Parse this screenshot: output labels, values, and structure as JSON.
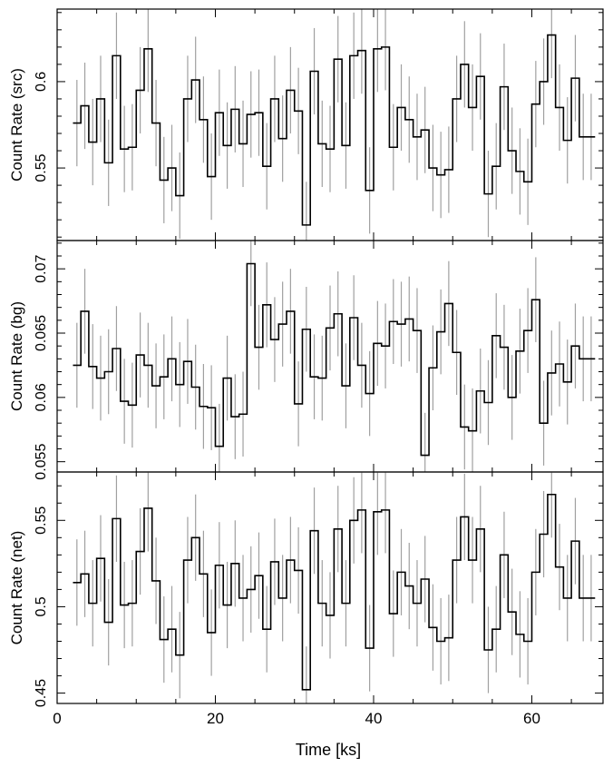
{
  "chart_data": {
    "type": "line",
    "xlabel": "Time [ks]",
    "xlim": [
      0,
      69
    ],
    "x_ticks": [
      "0",
      "20",
      "40",
      "60"
    ],
    "x_tick_values": [
      0,
      20,
      40,
      60
    ],
    "colors": {
      "line": "#000000",
      "errorbar": "#a0a0a0"
    },
    "bin_width": 1,
    "x": [
      2.5,
      3.5,
      4.5,
      5.5,
      6.5,
      7.5,
      8.5,
      9.5,
      10.5,
      11.5,
      12.5,
      13.5,
      14.5,
      15.5,
      16.5,
      17.5,
      18.5,
      19.5,
      20.5,
      21.5,
      22.5,
      23.5,
      24.5,
      25.5,
      26.5,
      27.5,
      28.5,
      29.5,
      30.5,
      31.5,
      32.5,
      33.5,
      34.5,
      35.5,
      36.5,
      37.5,
      38.5,
      39.5,
      40.5,
      41.5,
      42.5,
      43.5,
      44.5,
      45.5,
      46.5,
      47.5,
      48.5,
      49.5,
      50.5,
      51.5,
      52.5,
      53.5,
      54.5,
      55.5,
      56.5,
      57.5,
      58.5,
      59.5,
      60.5,
      61.5,
      62.5,
      63.5,
      64.5,
      65.5,
      66.5,
      67.5
    ],
    "panels": [
      {
        "ylabel": "Count Rate (src)",
        "ylim": [
          0.508,
          0.642
        ],
        "y_ticks": [
          "0.55",
          "0.6"
        ],
        "y_tick_values": [
          0.55,
          0.6
        ],
        "values": [
          0.576,
          0.586,
          0.565,
          0.59,
          0.553,
          0.615,
          0.561,
          0.562,
          0.595,
          0.619,
          0.576,
          0.543,
          0.55,
          0.534,
          0.59,
          0.601,
          0.578,
          0.545,
          0.582,
          0.563,
          0.584,
          0.564,
          0.581,
          0.582,
          0.551,
          0.59,
          0.567,
          0.595,
          0.583,
          0.517,
          0.606,
          0.564,
          0.561,
          0.613,
          0.563,
          0.615,
          0.618,
          0.537,
          0.619,
          0.62,
          0.562,
          0.585,
          0.578,
          0.568,
          0.572,
          0.55,
          0.546,
          0.549,
          0.59,
          0.61,
          0.585,
          0.603,
          0.535,
          0.551,
          0.597,
          0.56,
          0.548,
          0.542,
          0.587,
          0.6,
          0.627,
          0.585,
          0.566,
          0.602,
          0.568,
          0.568
        ],
        "errors": [
          0.025,
          0.025,
          0.025,
          0.025,
          0.025,
          0.025,
          0.025,
          0.025,
          0.025,
          0.025,
          0.025,
          0.025,
          0.025,
          0.025,
          0.025,
          0.025,
          0.025,
          0.025,
          0.025,
          0.025,
          0.025,
          0.025,
          0.025,
          0.025,
          0.025,
          0.025,
          0.025,
          0.025,
          0.025,
          0.025,
          0.025,
          0.025,
          0.025,
          0.025,
          0.025,
          0.025,
          0.025,
          0.025,
          0.025,
          0.025,
          0.025,
          0.025,
          0.025,
          0.025,
          0.025,
          0.025,
          0.025,
          0.025,
          0.025,
          0.025,
          0.025,
          0.025,
          0.025,
          0.025,
          0.025,
          0.025,
          0.025,
          0.025,
          0.025,
          0.025,
          0.025,
          0.025,
          0.025,
          0.025,
          0.025,
          0.025
        ]
      },
      {
        "ylabel": "Count Rate (bg)",
        "ylim": [
          0.0542,
          0.0722
        ],
        "y_ticks": [
          "0.055",
          "0.06",
          "0.065",
          "0.07"
        ],
        "y_tick_values": [
          0.055,
          0.06,
          0.065,
          0.07
        ],
        "values": [
          0.0625,
          0.0667,
          0.0624,
          0.0615,
          0.062,
          0.0638,
          0.0597,
          0.0594,
          0.0633,
          0.0625,
          0.0609,
          0.0616,
          0.063,
          0.061,
          0.0628,
          0.0608,
          0.0593,
          0.0592,
          0.0562,
          0.0615,
          0.0585,
          0.0587,
          0.0704,
          0.0639,
          0.0672,
          0.0645,
          0.0657,
          0.0667,
          0.0595,
          0.0653,
          0.0616,
          0.0615,
          0.0654,
          0.0665,
          0.0609,
          0.0662,
          0.0625,
          0.0603,
          0.0642,
          0.064,
          0.0659,
          0.0657,
          0.0661,
          0.0652,
          0.0555,
          0.0623,
          0.0651,
          0.0673,
          0.0635,
          0.0577,
          0.0574,
          0.0605,
          0.0596,
          0.0648,
          0.0639,
          0.06,
          0.0636,
          0.0652,
          0.0676,
          0.058,
          0.0619,
          0.0626,
          0.0612,
          0.064,
          0.063,
          0.063
        ],
        "errors": [
          0.0033,
          0.0033,
          0.0033,
          0.0033,
          0.0033,
          0.0033,
          0.0033,
          0.0033,
          0.0033,
          0.0033,
          0.0033,
          0.0033,
          0.0033,
          0.0033,
          0.0033,
          0.0033,
          0.0033,
          0.0033,
          0.0033,
          0.0033,
          0.0033,
          0.0033,
          0.0033,
          0.0033,
          0.0033,
          0.0033,
          0.0033,
          0.0033,
          0.0033,
          0.0033,
          0.0033,
          0.0033,
          0.0033,
          0.0033,
          0.0033,
          0.0033,
          0.0033,
          0.0033,
          0.0033,
          0.0033,
          0.0033,
          0.0033,
          0.0033,
          0.0033,
          0.0033,
          0.0033,
          0.0033,
          0.0033,
          0.0033,
          0.0033,
          0.0033,
          0.0033,
          0.0033,
          0.0033,
          0.0033,
          0.0033,
          0.0033,
          0.0033,
          0.0033,
          0.0033,
          0.0033,
          0.0033,
          0.0033,
          0.0033,
          0.0033,
          0.0033
        ]
      },
      {
        "ylabel": "Count Rate (net)",
        "ylim": [
          0.444,
          0.578
        ],
        "y_ticks": [
          "0.45",
          "0.5",
          "0.55"
        ],
        "y_tick_values": [
          0.45,
          0.5,
          0.55
        ],
        "values": [
          0.514,
          0.519,
          0.502,
          0.528,
          0.491,
          0.551,
          0.501,
          0.502,
          0.532,
          0.557,
          0.515,
          0.481,
          0.487,
          0.472,
          0.527,
          0.54,
          0.519,
          0.485,
          0.524,
          0.501,
          0.525,
          0.505,
          0.51,
          0.518,
          0.487,
          0.526,
          0.505,
          0.527,
          0.521,
          0.452,
          0.544,
          0.502,
          0.495,
          0.545,
          0.502,
          0.55,
          0.556,
          0.476,
          0.555,
          0.556,
          0.496,
          0.52,
          0.512,
          0.502,
          0.516,
          0.488,
          0.48,
          0.482,
          0.527,
          0.552,
          0.527,
          0.545,
          0.475,
          0.487,
          0.53,
          0.497,
          0.484,
          0.48,
          0.52,
          0.542,
          0.565,
          0.523,
          0.505,
          0.538,
          0.505,
          0.505
        ],
        "errors": [
          0.025,
          0.025,
          0.025,
          0.025,
          0.025,
          0.025,
          0.025,
          0.025,
          0.025,
          0.025,
          0.025,
          0.025,
          0.025,
          0.025,
          0.025,
          0.025,
          0.025,
          0.025,
          0.025,
          0.025,
          0.025,
          0.025,
          0.025,
          0.025,
          0.025,
          0.025,
          0.025,
          0.025,
          0.025,
          0.025,
          0.025,
          0.025,
          0.025,
          0.025,
          0.025,
          0.025,
          0.025,
          0.025,
          0.025,
          0.025,
          0.025,
          0.025,
          0.025,
          0.025,
          0.025,
          0.025,
          0.025,
          0.025,
          0.025,
          0.025,
          0.025,
          0.025,
          0.025,
          0.025,
          0.025,
          0.025,
          0.025,
          0.025,
          0.025,
          0.025,
          0.025,
          0.025,
          0.025,
          0.025,
          0.025,
          0.025
        ]
      }
    ]
  }
}
